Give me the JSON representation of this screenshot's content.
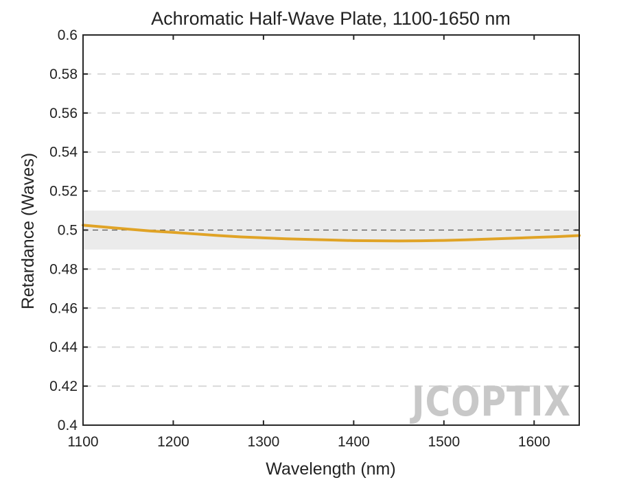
{
  "chart_data": {
    "type": "line",
    "title": "Achromatic Half-Wave Plate, 1100-1650 nm",
    "xlabel": "Wavelength (nm)",
    "ylabel": "Retardance (Waves)",
    "xlim": [
      1100,
      1650
    ],
    "ylim": [
      0.4,
      0.6
    ],
    "xticks": [
      "1100",
      "1200",
      "1300",
      "1400",
      "1500",
      "1600"
    ],
    "yticks": [
      "0.4",
      "0.42",
      "0.44",
      "0.46",
      "0.48",
      "0.5",
      "0.52",
      "0.54",
      "0.56",
      "0.58",
      "0.6"
    ],
    "grid": "horizontal dashed",
    "reference_line": 0.5,
    "tolerance_band": [
      0.49,
      0.51
    ],
    "series": [
      {
        "color": "#E0A326",
        "x": [
          1100,
          1125,
          1150,
          1175,
          1200,
          1225,
          1250,
          1275,
          1300,
          1325,
          1350,
          1375,
          1400,
          1425,
          1450,
          1475,
          1500,
          1525,
          1550,
          1575,
          1600,
          1625,
          1650
        ],
        "y": [
          0.5025,
          0.5015,
          0.5005,
          0.4995,
          0.4988,
          0.498,
          0.4972,
          0.4965,
          0.496,
          0.4955,
          0.4952,
          0.4949,
          0.4946,
          0.4945,
          0.4944,
          0.4945,
          0.4947,
          0.495,
          0.4954,
          0.4958,
          0.4962,
          0.4966,
          0.4972
        ]
      }
    ],
    "colors": {
      "line": "#E0A326",
      "band": "#EBEBEB",
      "grid": "#D9D9D9",
      "axes": "#262626"
    }
  },
  "watermark": {
    "text": "JCOPTIX",
    "color": "#C8C8C8",
    "accent": "#F5D9B8"
  }
}
